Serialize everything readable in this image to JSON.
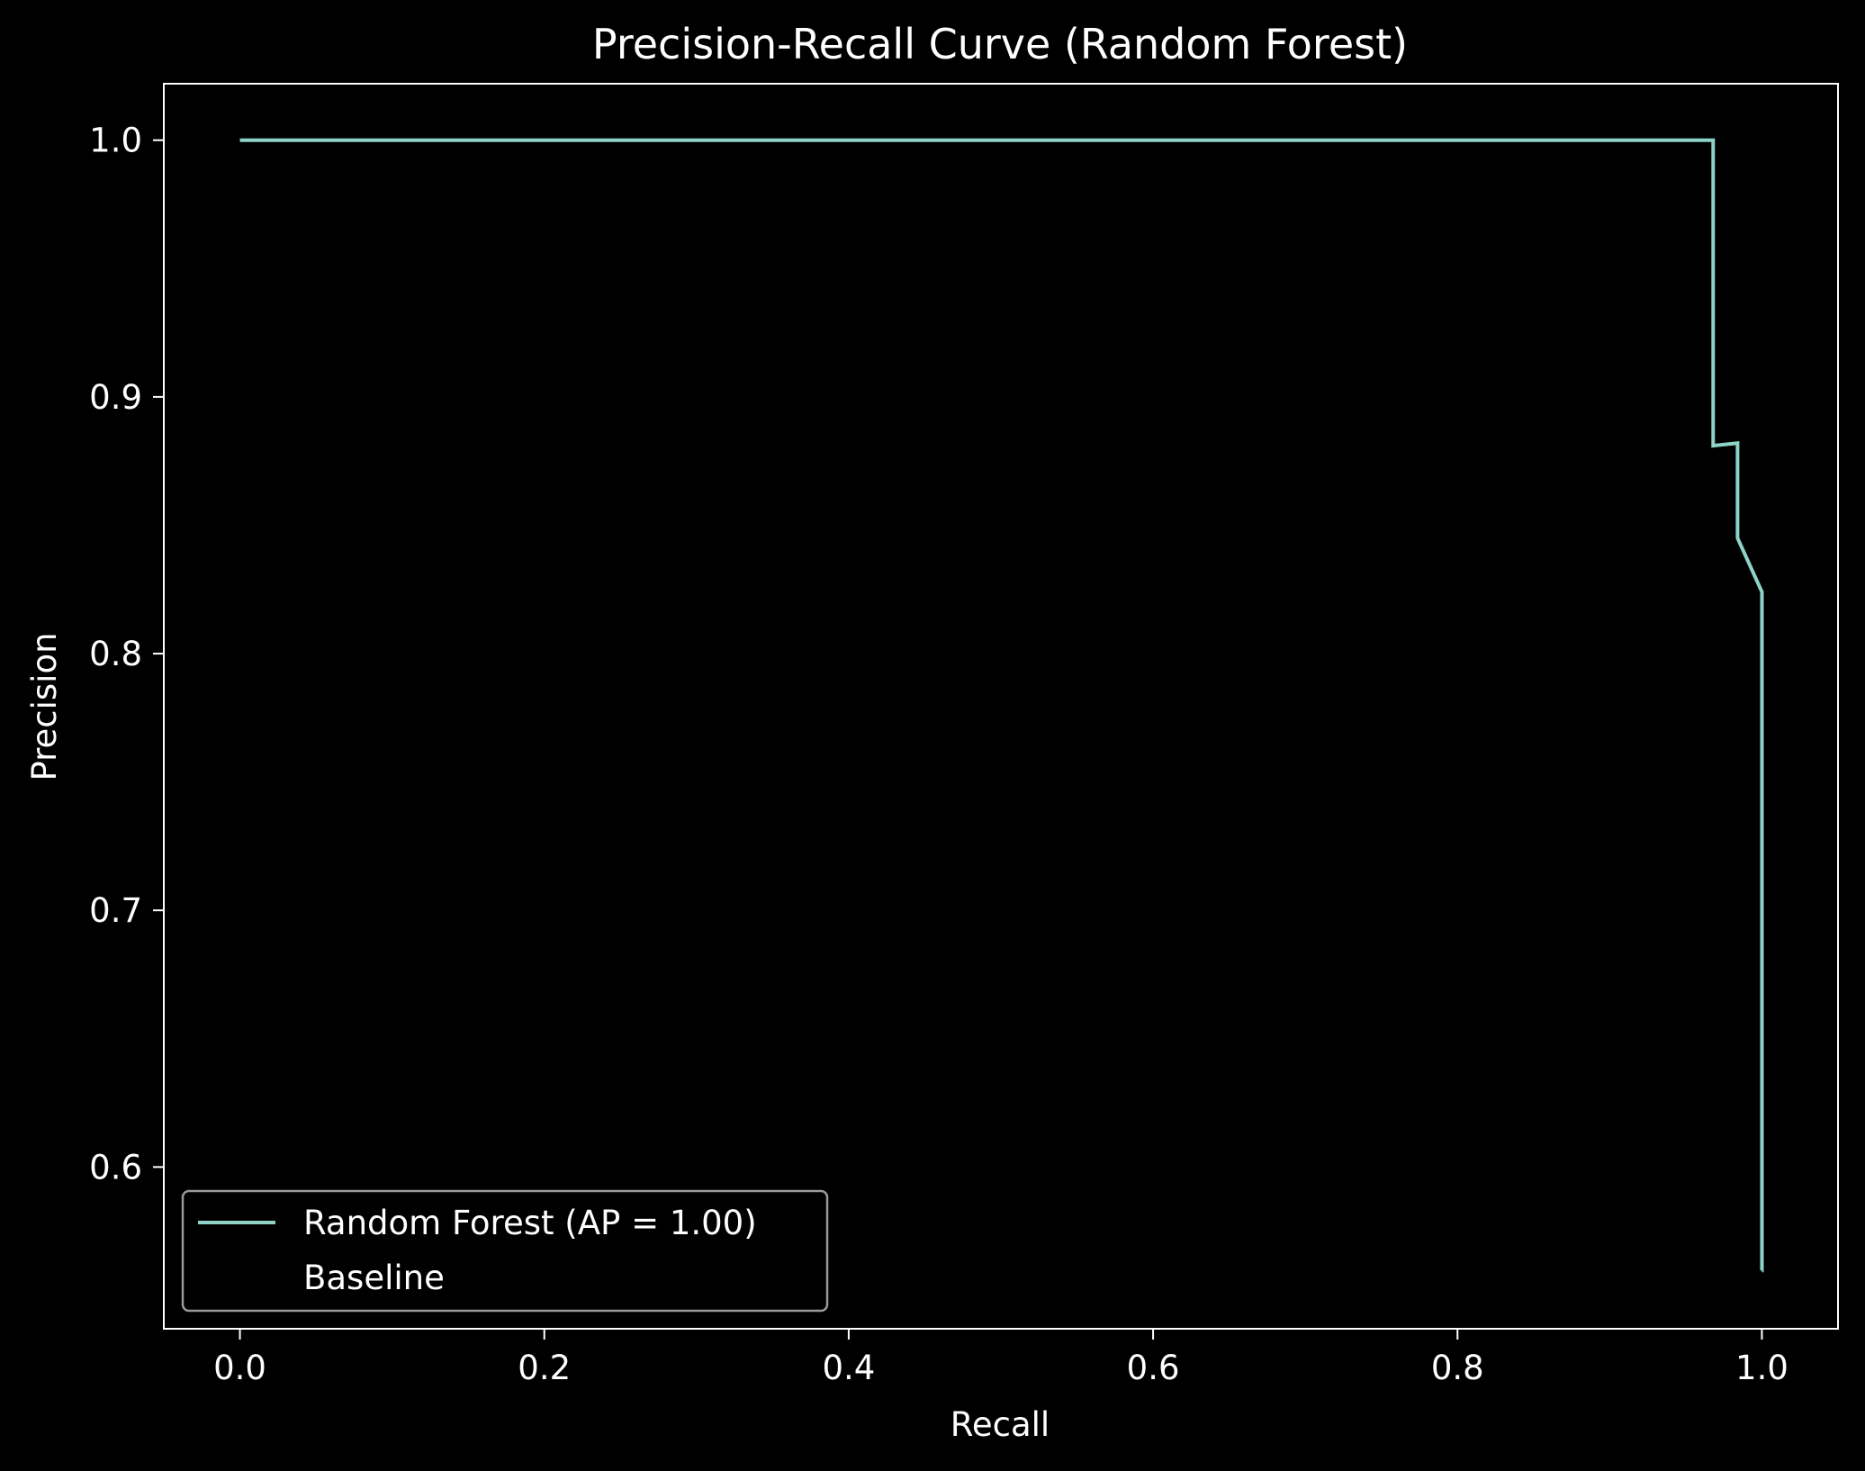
{
  "chart_data": {
    "type": "line",
    "title": "Precision-Recall Curve (Random Forest)",
    "xlabel": "Recall",
    "ylabel": "Precision",
    "xlim": [
      -0.05,
      1.05
    ],
    "ylim": [
      0.537,
      1.022
    ],
    "xticks": [
      0.0,
      0.2,
      0.4,
      0.6,
      0.8,
      1.0
    ],
    "xtick_labels": [
      "0.0",
      "0.2",
      "0.4",
      "0.6",
      "0.8",
      "1.0"
    ],
    "yticks": [
      0.6,
      0.7,
      0.8,
      0.9,
      1.0
    ],
    "ytick_labels": [
      "0.6",
      "0.7",
      "0.8",
      "0.9",
      "1.0"
    ],
    "grid": false,
    "legend_position": "lower-left",
    "series": [
      {
        "name": "Random Forest (AP = 1.00)",
        "color": "#8dd3c7",
        "x": [
          0.0,
          0.968,
          0.968,
          0.984,
          0.984,
          1.0,
          1.0
        ],
        "y": [
          1.0,
          1.0,
          0.881,
          0.882,
          0.845,
          0.824,
          0.559
        ]
      },
      {
        "name": "Baseline",
        "color": "#000000",
        "x": [
          0.0,
          1.0
        ],
        "y": [
          0.559,
          0.559
        ]
      }
    ],
    "colors": {
      "background": "#000000",
      "foreground": "#ffffff",
      "line": "#8dd3c7",
      "legend_border": "#9a9a9a"
    }
  }
}
